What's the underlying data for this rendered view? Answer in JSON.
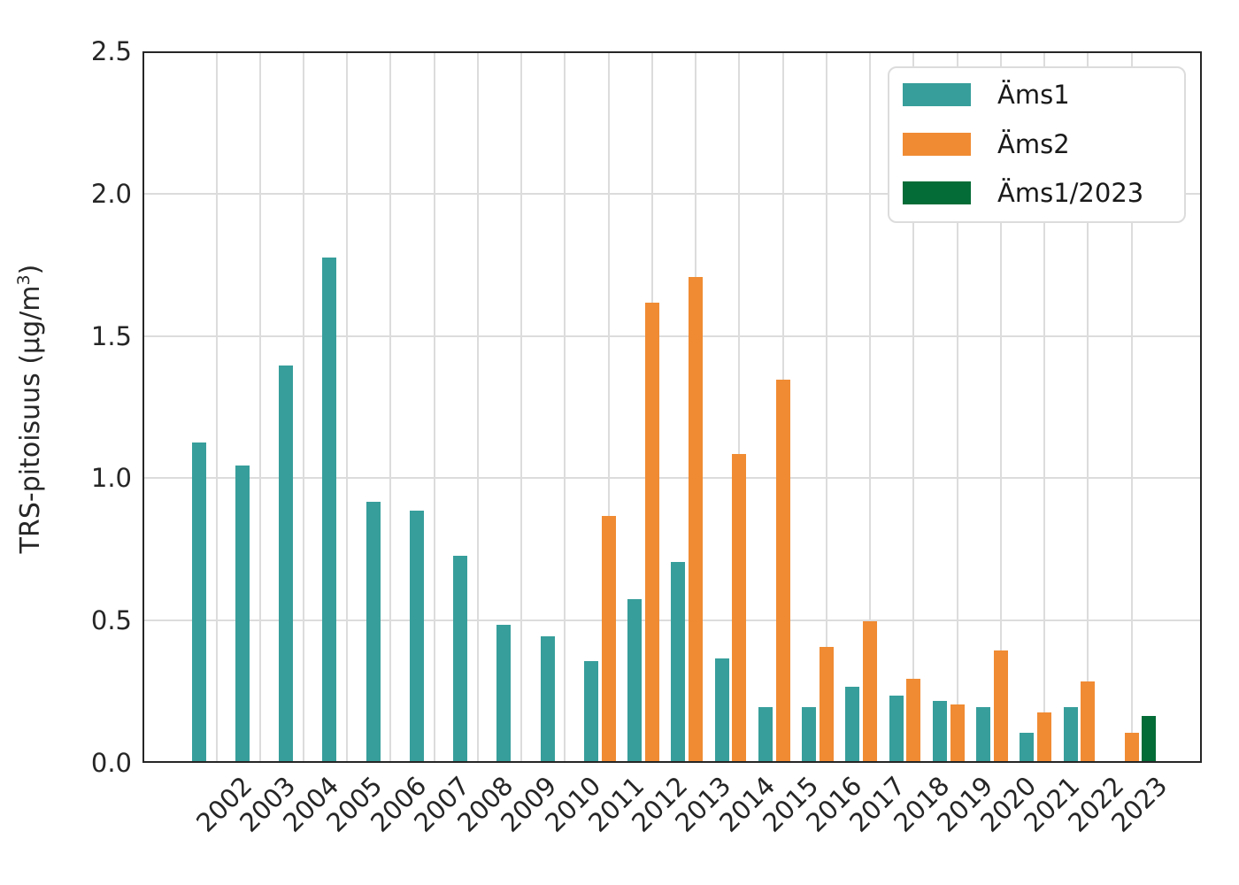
{
  "y_axis": {
    "label_prefix": "TRS-pitoisuus (µg/m",
    "label_sup": "3",
    "label_suffix": ")",
    "tick_labels": [
      "0.0",
      "0.5",
      "1.0",
      "1.5",
      "2.0",
      "2.5"
    ]
  },
  "chart_data": {
    "type": "bar",
    "title": "",
    "xlabel": "",
    "ylabel": "TRS-pitoisuus (µg/m³)",
    "ylim": [
      0,
      2.5
    ],
    "yticks": [
      0.0,
      0.5,
      1.0,
      1.5,
      2.0,
      2.5
    ],
    "grid": true,
    "legend_position": "upper right",
    "categories": [
      "2002",
      "2003",
      "2004",
      "2005",
      "2006",
      "2007",
      "2008",
      "2009",
      "2010",
      "2011",
      "2012",
      "2013",
      "2014",
      "2015",
      "2016",
      "2017",
      "2018",
      "2019",
      "2020",
      "2021",
      "2022",
      "2023"
    ],
    "series": [
      {
        "name": "Äms1",
        "color": "#379E9B",
        "values": [
          1.12,
          1.04,
          1.39,
          1.77,
          0.91,
          0.88,
          0.72,
          0.48,
          0.44,
          0.35,
          0.57,
          0.7,
          0.36,
          0.19,
          0.19,
          0.26,
          0.23,
          0.21,
          0.19,
          0.1,
          0.19,
          null
        ]
      },
      {
        "name": "Äms2",
        "color": "#F08B33",
        "values": [
          null,
          null,
          null,
          null,
          null,
          null,
          null,
          null,
          null,
          0.86,
          1.61,
          1.7,
          1.08,
          1.34,
          0.4,
          0.49,
          0.29,
          0.2,
          0.39,
          0.17,
          0.28,
          0.1
        ]
      },
      {
        "name": "Äms1/2023",
        "color": "#046C37",
        "values": [
          null,
          null,
          null,
          null,
          null,
          null,
          null,
          null,
          null,
          null,
          null,
          null,
          null,
          null,
          null,
          null,
          null,
          null,
          null,
          null,
          null,
          0.16
        ]
      }
    ]
  }
}
